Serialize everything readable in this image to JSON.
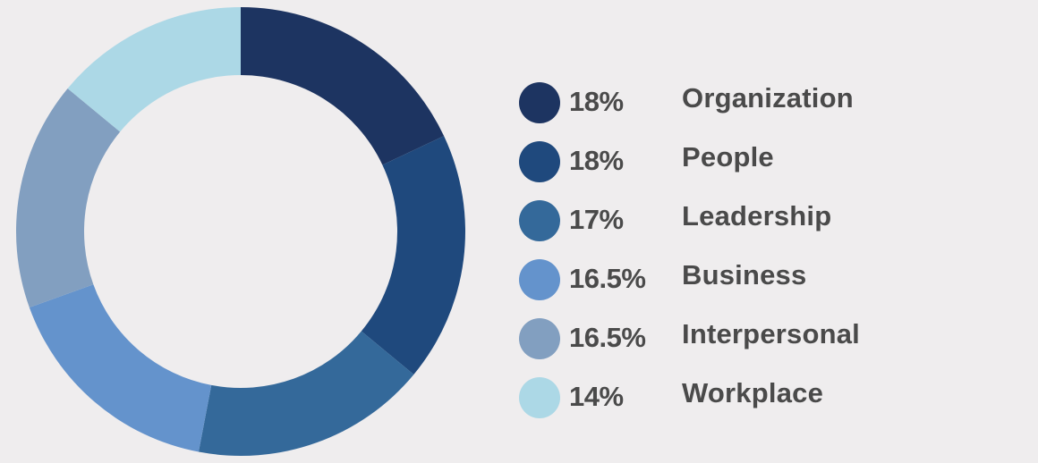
{
  "chart_data": {
    "type": "pie",
    "donut": true,
    "start_angle_deg": 0,
    "direction": "clockwise",
    "legend_position": "right",
    "categories": [
      "Organization",
      "People",
      "Leadership",
      "Business",
      "Interpersonal",
      "Workplace"
    ],
    "values": [
      18,
      18,
      17,
      16.5,
      16.5,
      14
    ],
    "value_labels": [
      "18%",
      "18%",
      "17%",
      "16.5%",
      "16.5%",
      "14%"
    ],
    "colors": [
      "#1d3461",
      "#1f497d",
      "#34699a",
      "#6493cc",
      "#829fc0",
      "#acd8e6"
    ]
  }
}
